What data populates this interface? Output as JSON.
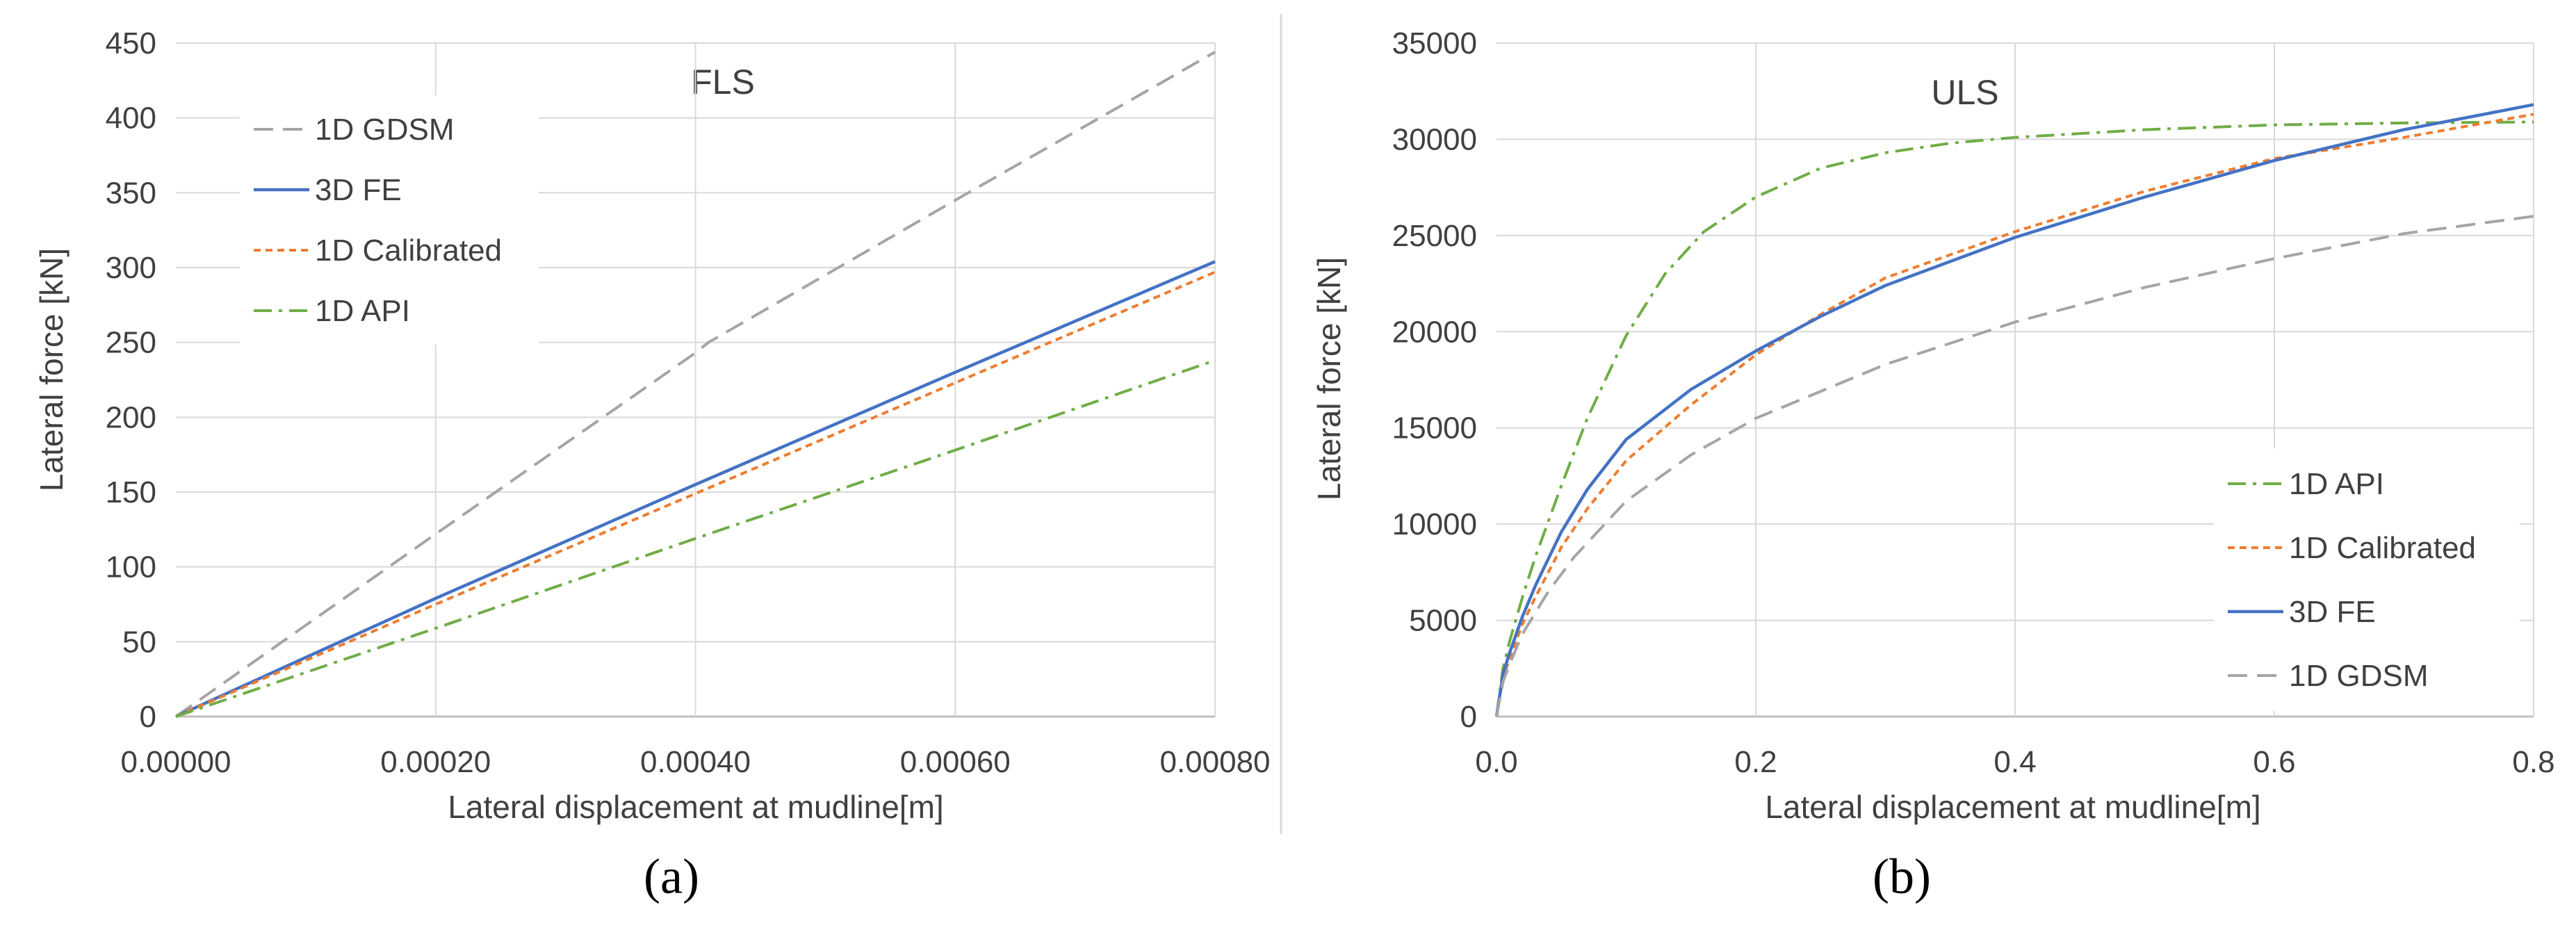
{
  "chart_data": [
    {
      "type": "line",
      "title": "FLS",
      "caption": "(a)",
      "xlabel": "Lateral displacement at mudline[m]",
      "ylabel": "Lateral force [kN]",
      "xlim": [
        0,
        0.0008
      ],
      "ylim": [
        0,
        450
      ],
      "xticks": [
        "0.00000",
        "0.00020",
        "0.00040",
        "0.00060",
        "0.00080"
      ],
      "yticks": [
        "0",
        "50",
        "100",
        "150",
        "200",
        "250",
        "300",
        "350",
        "400",
        "450"
      ],
      "grid": true,
      "legend_position": "top-left",
      "series": [
        {
          "name": "1D GDSM",
          "color": "#a5a5a5",
          "dash": "long-dash",
          "x": [
            0,
            0.0002,
            0.0004,
            0.00041,
            0.0006,
            0.0008
          ],
          "y": [
            0,
            122,
            243,
            250,
            345,
            444
          ]
        },
        {
          "name": "3D FE",
          "color": "#4472c4",
          "dash": "solid",
          "x": [
            0,
            0.0002,
            0.0004,
            0.0006,
            0.0008
          ],
          "y": [
            0,
            79,
            155,
            230,
            304
          ]
        },
        {
          "name": "1D Calibrated",
          "color": "#ed7d31",
          "dash": "short-dash",
          "x": [
            0,
            0.0002,
            0.0004,
            0.0006,
            0.0008
          ],
          "y": [
            0,
            75,
            149,
            223,
            297
          ]
        },
        {
          "name": "1D API",
          "color": "#70ad47",
          "dash": "dash-dot",
          "x": [
            0,
            0.0002,
            0.0004,
            0.0006,
            0.0008
          ],
          "y": [
            0,
            59,
            119,
            178,
            238
          ]
        }
      ]
    },
    {
      "type": "line",
      "title": "ULS",
      "caption": "(b)",
      "xlabel": "Lateral displacement at mudline[m]",
      "ylabel": "Lateral force [kN]",
      "xlim": [
        0,
        0.8
      ],
      "ylim": [
        0,
        35000
      ],
      "xticks": [
        "0.0",
        "0.2",
        "0.4",
        "0.6",
        "0.8"
      ],
      "yticks": [
        "0",
        "5000",
        "10000",
        "15000",
        "20000",
        "25000",
        "30000",
        "35000"
      ],
      "grid": true,
      "legend_position": "bottom-right",
      "series": [
        {
          "name": "1D API",
          "color": "#70ad47",
          "dash": "dash-dot",
          "x": [
            0,
            0.005,
            0.01,
            0.02,
            0.03,
            0.05,
            0.07,
            0.1,
            0.13,
            0.16,
            0.2,
            0.25,
            0.3,
            0.35,
            0.4,
            0.5,
            0.6,
            0.7,
            0.8
          ],
          "y": [
            0,
            2500,
            3900,
            6200,
            8300,
            12000,
            15500,
            19800,
            23000,
            25200,
            27000,
            28500,
            29300,
            29800,
            30100,
            30500,
            30750,
            30850,
            30900
          ]
        },
        {
          "name": "1D Calibrated",
          "color": "#ed7d31",
          "dash": "short-dash",
          "x": [
            0,
            0.005,
            0.01,
            0.02,
            0.03,
            0.05,
            0.07,
            0.1,
            0.15,
            0.2,
            0.25,
            0.3,
            0.4,
            0.5,
            0.6,
            0.7,
            0.8
          ],
          "y": [
            0,
            2000,
            3000,
            4800,
            6200,
            8800,
            10800,
            13300,
            16200,
            18800,
            20900,
            22800,
            25200,
            27300,
            29000,
            30100,
            31300
          ]
        },
        {
          "name": "3D FE",
          "color": "#4472c4",
          "dash": "solid",
          "x": [
            0,
            0.005,
            0.01,
            0.02,
            0.03,
            0.05,
            0.07,
            0.1,
            0.15,
            0.2,
            0.25,
            0.3,
            0.4,
            0.5,
            0.6,
            0.7,
            0.8
          ],
          "y": [
            0,
            2200,
            3300,
            5200,
            6800,
            9600,
            11800,
            14400,
            17000,
            19000,
            20800,
            22400,
            24900,
            27000,
            28900,
            30500,
            31800
          ]
        },
        {
          "name": "1D GDSM",
          "color": "#a5a5a5",
          "dash": "long-dash",
          "x": [
            0,
            0.005,
            0.01,
            0.02,
            0.04,
            0.06,
            0.1,
            0.15,
            0.2,
            0.3,
            0.4,
            0.5,
            0.6,
            0.7,
            0.8
          ],
          "y": [
            0,
            1800,
            2700,
            4300,
            6500,
            8300,
            11200,
            13600,
            15500,
            18300,
            20500,
            22300,
            23800,
            25100,
            26000
          ]
        }
      ]
    }
  ]
}
